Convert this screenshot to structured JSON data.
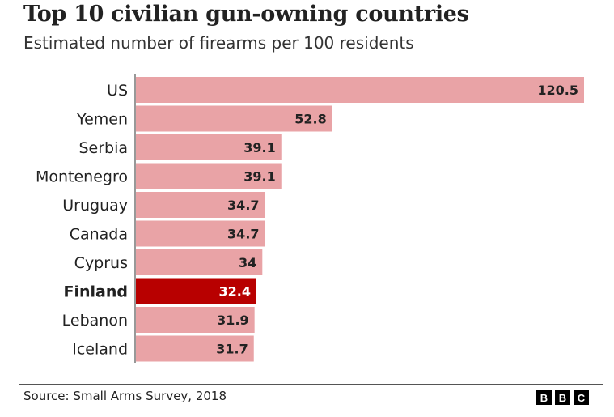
{
  "chart_data": {
    "type": "bar",
    "orientation": "horizontal",
    "title": "Top 10 civilian gun-owning countries",
    "subtitle": "Estimated number of firearms per 100 residents",
    "categories": [
      "US",
      "Yemen",
      "Serbia",
      "Montenegro",
      "Uruguay",
      "Canada",
      "Cyprus",
      "Finland",
      "Lebanon",
      "Iceland"
    ],
    "values": [
      120.5,
      52.8,
      39.1,
      39.1,
      34.7,
      34.7,
      34,
      32.4,
      31.9,
      31.7
    ],
    "value_labels": [
      "120.5",
      "52.8",
      "39.1",
      "39.1",
      "34.7",
      "34.7",
      "34",
      "32.4",
      "31.9",
      "31.7"
    ],
    "highlight": "Finland",
    "xlim": [
      0,
      120.5
    ],
    "grid": false,
    "colors": {
      "bar": "#e9a3a6",
      "highlight": "#b80000",
      "label_dark": "#222222",
      "label_light": "#ffffff"
    }
  },
  "footer": {
    "source": "Source: Small Arms Survey, 2018",
    "logo": [
      "B",
      "B",
      "C"
    ]
  }
}
